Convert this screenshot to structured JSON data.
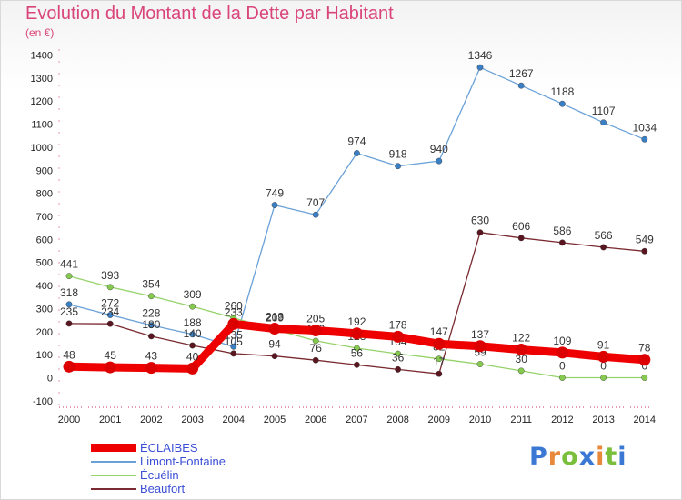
{
  "title": "Evolution du Montant de la Dette par Habitant",
  "subtitle": "(en €)",
  "brand": {
    "text": "Proxiti",
    "colors": [
      "#3a78d4",
      "#e8883b",
      "#7abf3c",
      "#3a78d4",
      "#e8883b",
      "#7abf3c",
      "#3a78d4"
    ]
  },
  "chart_data": {
    "type": "line",
    "x": [
      "2000",
      "2001",
      "2002",
      "2003",
      "2004",
      "2005",
      "2006",
      "2007",
      "2008",
      "2009",
      "2010",
      "2011",
      "2012",
      "2013",
      "2014"
    ],
    "ylim": [
      -100,
      1400
    ],
    "yticks": [
      -100,
      0,
      100,
      200,
      300,
      400,
      500,
      600,
      700,
      800,
      900,
      1000,
      1100,
      1200,
      1300,
      1400
    ],
    "grid": false,
    "legend_position": "bottom-left",
    "series": [
      {
        "name": "Limont-Fontaine",
        "color": "#6aa1d8",
        "marker": "#3a7fc4",
        "width": 1.3,
        "values": [
          318,
          272,
          228,
          188,
          135,
          749,
          707,
          974,
          918,
          940,
          1346,
          1267,
          1188,
          1107,
          1034
        ]
      },
      {
        "name": "Écuélin",
        "color": "#95d36a",
        "marker": "#86c94f",
        "width": 1.3,
        "values": [
          441,
          393,
          354,
          309,
          260,
          209,
          160,
          128,
          104,
          82,
          59,
          30,
          0,
          0,
          0
        ]
      },
      {
        "name": "Beaufort",
        "color": "#7a2a30",
        "marker": "#5a1620",
        "width": 1.3,
        "values": [
          235,
          234,
          180,
          140,
          105,
          94,
          76,
          56,
          36,
          17,
          630,
          606,
          586,
          566,
          549
        ]
      },
      {
        "name": "ÉCLAIBES",
        "color": "#ee0000",
        "marker": "#dd0000",
        "width": 9,
        "values": [
          48,
          45,
          43,
          40,
          233,
          213,
          205,
          192,
          178,
          147,
          137,
          122,
          109,
          91,
          78
        ]
      }
    ],
    "legend_order": [
      "ÉCLAIBES",
      "Limont-Fontaine",
      "Écuélin",
      "Beaufort"
    ]
  }
}
